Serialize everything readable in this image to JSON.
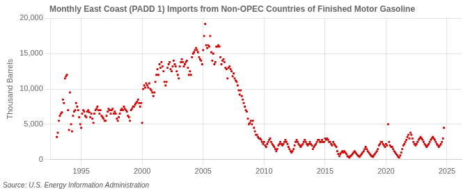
{
  "chart_data": {
    "type": "scatter",
    "title": "Monthly East Coast (PADD 1) Imports from Non-OPEC Countries of Finished Motor Gasoline",
    "ylabel": "Thousand Barrels",
    "source": "Source: U.S. Energy Information Administration",
    "color": "#cc0000",
    "marker": "square",
    "grid": true,
    "xlim": [
      1992.5,
      2026.2
    ],
    "xticks": [
      1995,
      2000,
      2005,
      2010,
      2015,
      2020,
      2025
    ],
    "ylim": [
      0,
      20000
    ],
    "yticks": [
      0,
      {
        "value": 5000,
        "label": "5,000"
      },
      {
        "value": 10000,
        "label": "10,000"
      },
      {
        "value": 15000,
        "label": "15,000"
      },
      {
        "value": 20000,
        "label": "20,000"
      }
    ],
    "x": [
      1993.0,
      1993.08,
      1993.17,
      1993.25,
      1993.33,
      1993.42,
      1993.5,
      1993.58,
      1993.67,
      1993.75,
      1993.83,
      1993.92,
      1994.0,
      1994.08,
      1994.17,
      1994.25,
      1994.33,
      1994.42,
      1994.5,
      1994.58,
      1994.67,
      1994.75,
      1994.83,
      1994.92,
      1995.0,
      1995.08,
      1995.17,
      1995.25,
      1995.33,
      1995.42,
      1995.5,
      1995.58,
      1995.67,
      1995.75,
      1995.83,
      1995.92,
      1996.0,
      1996.08,
      1996.17,
      1996.25,
      1996.33,
      1996.42,
      1996.5,
      1996.58,
      1996.67,
      1996.75,
      1996.83,
      1996.92,
      1997.0,
      1997.08,
      1997.17,
      1997.25,
      1997.33,
      1997.42,
      1997.5,
      1997.58,
      1997.67,
      1997.75,
      1997.83,
      1997.92,
      1998.0,
      1998.08,
      1998.17,
      1998.25,
      1998.33,
      1998.42,
      1998.5,
      1998.58,
      1998.67,
      1998.75,
      1998.83,
      1998.92,
      1999.0,
      1999.08,
      1999.17,
      1999.25,
      1999.33,
      1999.42,
      1999.5,
      1999.58,
      1999.67,
      1999.75,
      1999.83,
      1999.92,
      2000.0,
      2000.08,
      2000.17,
      2000.25,
      2000.33,
      2000.42,
      2000.5,
      2000.58,
      2000.67,
      2000.75,
      2000.83,
      2000.92,
      2001.0,
      2001.08,
      2001.17,
      2001.25,
      2001.33,
      2001.42,
      2001.5,
      2001.58,
      2001.67,
      2001.75,
      2001.83,
      2001.92,
      2002.0,
      2002.08,
      2002.17,
      2002.25,
      2002.33,
      2002.42,
      2002.5,
      2002.58,
      2002.67,
      2002.75,
      2002.83,
      2002.92,
      2003.0,
      2003.08,
      2003.17,
      2003.25,
      2003.33,
      2003.42,
      2003.5,
      2003.58,
      2003.67,
      2003.75,
      2003.83,
      2003.92,
      2004.0,
      2004.08,
      2004.17,
      2004.25,
      2004.33,
      2004.42,
      2004.5,
      2004.58,
      2004.67,
      2004.75,
      2004.83,
      2004.92,
      2005.0,
      2005.08,
      2005.17,
      2005.25,
      2005.33,
      2005.42,
      2005.5,
      2005.58,
      2005.67,
      2005.75,
      2005.83,
      2005.92,
      2006.0,
      2006.08,
      2006.17,
      2006.25,
      2006.33,
      2006.42,
      2006.5,
      2006.58,
      2006.67,
      2006.75,
      2006.83,
      2006.92,
      2007.0,
      2007.08,
      2007.17,
      2007.25,
      2007.33,
      2007.42,
      2007.5,
      2007.58,
      2007.67,
      2007.75,
      2007.83,
      2007.92,
      2008.0,
      2008.08,
      2008.17,
      2008.25,
      2008.33,
      2008.42,
      2008.5,
      2008.58,
      2008.67,
      2008.75,
      2008.83,
      2008.92,
      2009.0,
      2009.08,
      2009.17,
      2009.25,
      2009.33,
      2009.42,
      2009.5,
      2009.58,
      2009.67,
      2009.75,
      2009.83,
      2009.92,
      2010.0,
      2010.08,
      2010.17,
      2010.25,
      2010.33,
      2010.42,
      2010.5,
      2010.58,
      2010.67,
      2010.75,
      2010.83,
      2010.92,
      2011.0,
      2011.08,
      2011.17,
      2011.25,
      2011.33,
      2011.42,
      2011.5,
      2011.58,
      2011.67,
      2011.75,
      2011.83,
      2011.92,
      2012.0,
      2012.08,
      2012.17,
      2012.25,
      2012.33,
      2012.42,
      2012.5,
      2012.58,
      2012.67,
      2012.75,
      2012.83,
      2012.92,
      2013.0,
      2013.08,
      2013.17,
      2013.25,
      2013.33,
      2013.42,
      2013.5,
      2013.58,
      2013.67,
      2013.75,
      2013.83,
      2013.92,
      2014.0,
      2014.08,
      2014.17,
      2014.25,
      2014.33,
      2014.42,
      2014.5,
      2014.58,
      2014.67,
      2014.75,
      2014.83,
      2014.92,
      2015.0,
      2015.08,
      2015.17,
      2015.25,
      2015.33,
      2015.42,
      2015.5,
      2015.58,
      2015.67,
      2015.75,
      2015.83,
      2015.92,
      2016.0,
      2016.08,
      2016.17,
      2016.25,
      2016.33,
      2016.42,
      2016.5,
      2016.58,
      2016.67,
      2016.75,
      2016.83,
      2016.92,
      2017.0,
      2017.08,
      2017.17,
      2017.25,
      2017.33,
      2017.42,
      2017.5,
      2017.58,
      2017.67,
      2017.75,
      2017.83,
      2017.92,
      2018.0,
      2018.08,
      2018.17,
      2018.25,
      2018.33,
      2018.42,
      2018.5,
      2018.58,
      2018.67,
      2018.75,
      2018.83,
      2018.92,
      2019.0,
      2019.08,
      2019.17,
      2019.25,
      2019.33,
      2019.42,
      2019.5,
      2019.58,
      2019.67,
      2019.75,
      2019.83,
      2019.92,
      2020.0,
      2020.08,
      2020.17,
      2020.25,
      2020.33,
      2020.42,
      2020.5,
      2020.58,
      2020.67,
      2020.75,
      2020.83,
      2020.92,
      2021.0,
      2021.08,
      2021.17,
      2021.25,
      2021.33,
      2021.42,
      2021.5,
      2021.58,
      2021.67,
      2021.75,
      2021.83,
      2021.92,
      2022.0,
      2022.08,
      2022.17,
      2022.25,
      2022.33,
      2022.42,
      2022.5,
      2022.58,
      2022.67,
      2022.75,
      2022.83,
      2022.92,
      2023.0,
      2023.08,
      2023.17,
      2023.25,
      2023.33,
      2023.42,
      2023.5,
      2023.58,
      2023.67,
      2023.75,
      2023.83,
      2023.92,
      2024.0,
      2024.08,
      2024.17,
      2024.25,
      2024.33,
      2024.42,
      2024.5,
      2024.58,
      2024.67,
      2024.75
    ],
    "values": [
      3200,
      3800,
      5500,
      6200,
      6500,
      6700,
      8500,
      8000,
      11500,
      11800,
      12000,
      7000,
      4200,
      9500,
      5000,
      4000,
      6200,
      6800,
      7000,
      8000,
      7500,
      7000,
      6000,
      5000,
      4500,
      6500,
      7000,
      6800,
      6200,
      6000,
      6800,
      7000,
      6700,
      6000,
      6500,
      5800,
      5200,
      6500,
      7000,
      7200,
      7500,
      7000,
      6500,
      7000,
      6200,
      6000,
      5800,
      5500,
      5500,
      6200,
      6800,
      7200,
      7000,
      6500,
      7000,
      7200,
      6500,
      6800,
      6500,
      5800,
      5500,
      6000,
      6500,
      7000,
      7200,
      7000,
      7500,
      7200,
      7000,
      6800,
      6200,
      6000,
      5500,
      7000,
      7200,
      7500,
      7500,
      7800,
      8000,
      8200,
      8500,
      8000,
      7500,
      8000,
      5200,
      10000,
      10500,
      10200,
      10800,
      10500,
      10200,
      10800,
      10000,
      9800,
      9500,
      9000,
      9500,
      11000,
      12000,
      12800,
      12000,
      13500,
      13000,
      13800,
      13200,
      12500,
      11000,
      10500,
      11000,
      13000,
      13500,
      13800,
      12800,
      12500,
      13200,
      14000,
      13500,
      13200,
      12500,
      12000,
      11500,
      13200,
      13800,
      14200,
      13800,
      13200,
      13500,
      13800,
      14000,
      13000,
      12000,
      12500,
      12000,
      14500,
      15000,
      15200,
      15500,
      15800,
      15500,
      15200,
      14500,
      14200,
      14000,
      13500,
      15500,
      17500,
      19200,
      16200,
      15800,
      16200,
      16000,
      17500,
      15200,
      14000,
      15000,
      13500,
      13800,
      16000,
      16000,
      16200,
      16000,
      14500,
      13500,
      14000,
      14200,
      13800,
      13000,
      12800,
      11500,
      13000,
      13200,
      12800,
      12500,
      11800,
      12200,
      11500,
      11200,
      11000,
      10500,
      9800,
      9200,
      9800,
      9000,
      8500,
      8000,
      7500,
      7000,
      6800,
      5800,
      5000,
      5200,
      5500,
      5000,
      5500,
      4500,
      4000,
      3500,
      3500,
      3200,
      3000,
      3000,
      2800,
      2500,
      2200,
      2500,
      2000,
      1800,
      2200,
      2500,
      2800,
      3000,
      2500,
      2200,
      2000,
      1800,
      1500,
      1200,
      1500,
      2000,
      2200,
      2500,
      2200,
      2000,
      2200,
      2500,
      2800,
      2500,
      2200,
      1800,
      1500,
      1200,
      1000,
      1200,
      1500,
      2000,
      2500,
      2800,
      2500,
      2200,
      2000,
      1800,
      2000,
      2200,
      2500,
      2800,
      2500,
      2200,
      2000,
      2200,
      2500,
      2200,
      2000,
      1500,
      1800,
      2000,
      2200,
      2500,
      2800,
      2800,
      2500,
      2500,
      2800,
      2500,
      2500,
      3000,
      2800,
      3000,
      2800,
      2500,
      2500,
      2200,
      2000,
      2500,
      2200,
      2000,
      1800,
      1200,
      800,
      500,
      800,
      1000,
      1200,
      1000,
      1200,
      1000,
      800,
      500,
      400,
      300,
      500,
      600,
      800,
      1000,
      1200,
      1000,
      800,
      600,
      500,
      400,
      600,
      800,
      1000,
      1200,
      1500,
      1800,
      1500,
      1200,
      1000,
      800,
      600,
      500,
      400,
      600,
      800,
      1000,
      1200,
      1500,
      2000,
      2200,
      2500,
      2500,
      2200,
      2000,
      1800,
      2200,
      2000,
      5000,
      2500,
      2000,
      1800,
      1800,
      1500,
      1200,
      1000,
      800,
      600,
      400,
      300,
      600,
      1000,
      1500,
      2000,
      2200,
      2500,
      2800,
      3200,
      3500,
      3000,
      3800,
      3500,
      3000,
      2500,
      2200,
      2000,
      2200,
      2500,
      2800,
      3000,
      3200,
      3000,
      2800,
      2500,
      2200,
      2000,
      1800,
      2000,
      2200,
      2500,
      2800,
      3000,
      3200,
      3000,
      2800,
      2500,
      2200,
      2000,
      1800,
      2000,
      2200,
      2500,
      3000,
      4500
    ]
  }
}
